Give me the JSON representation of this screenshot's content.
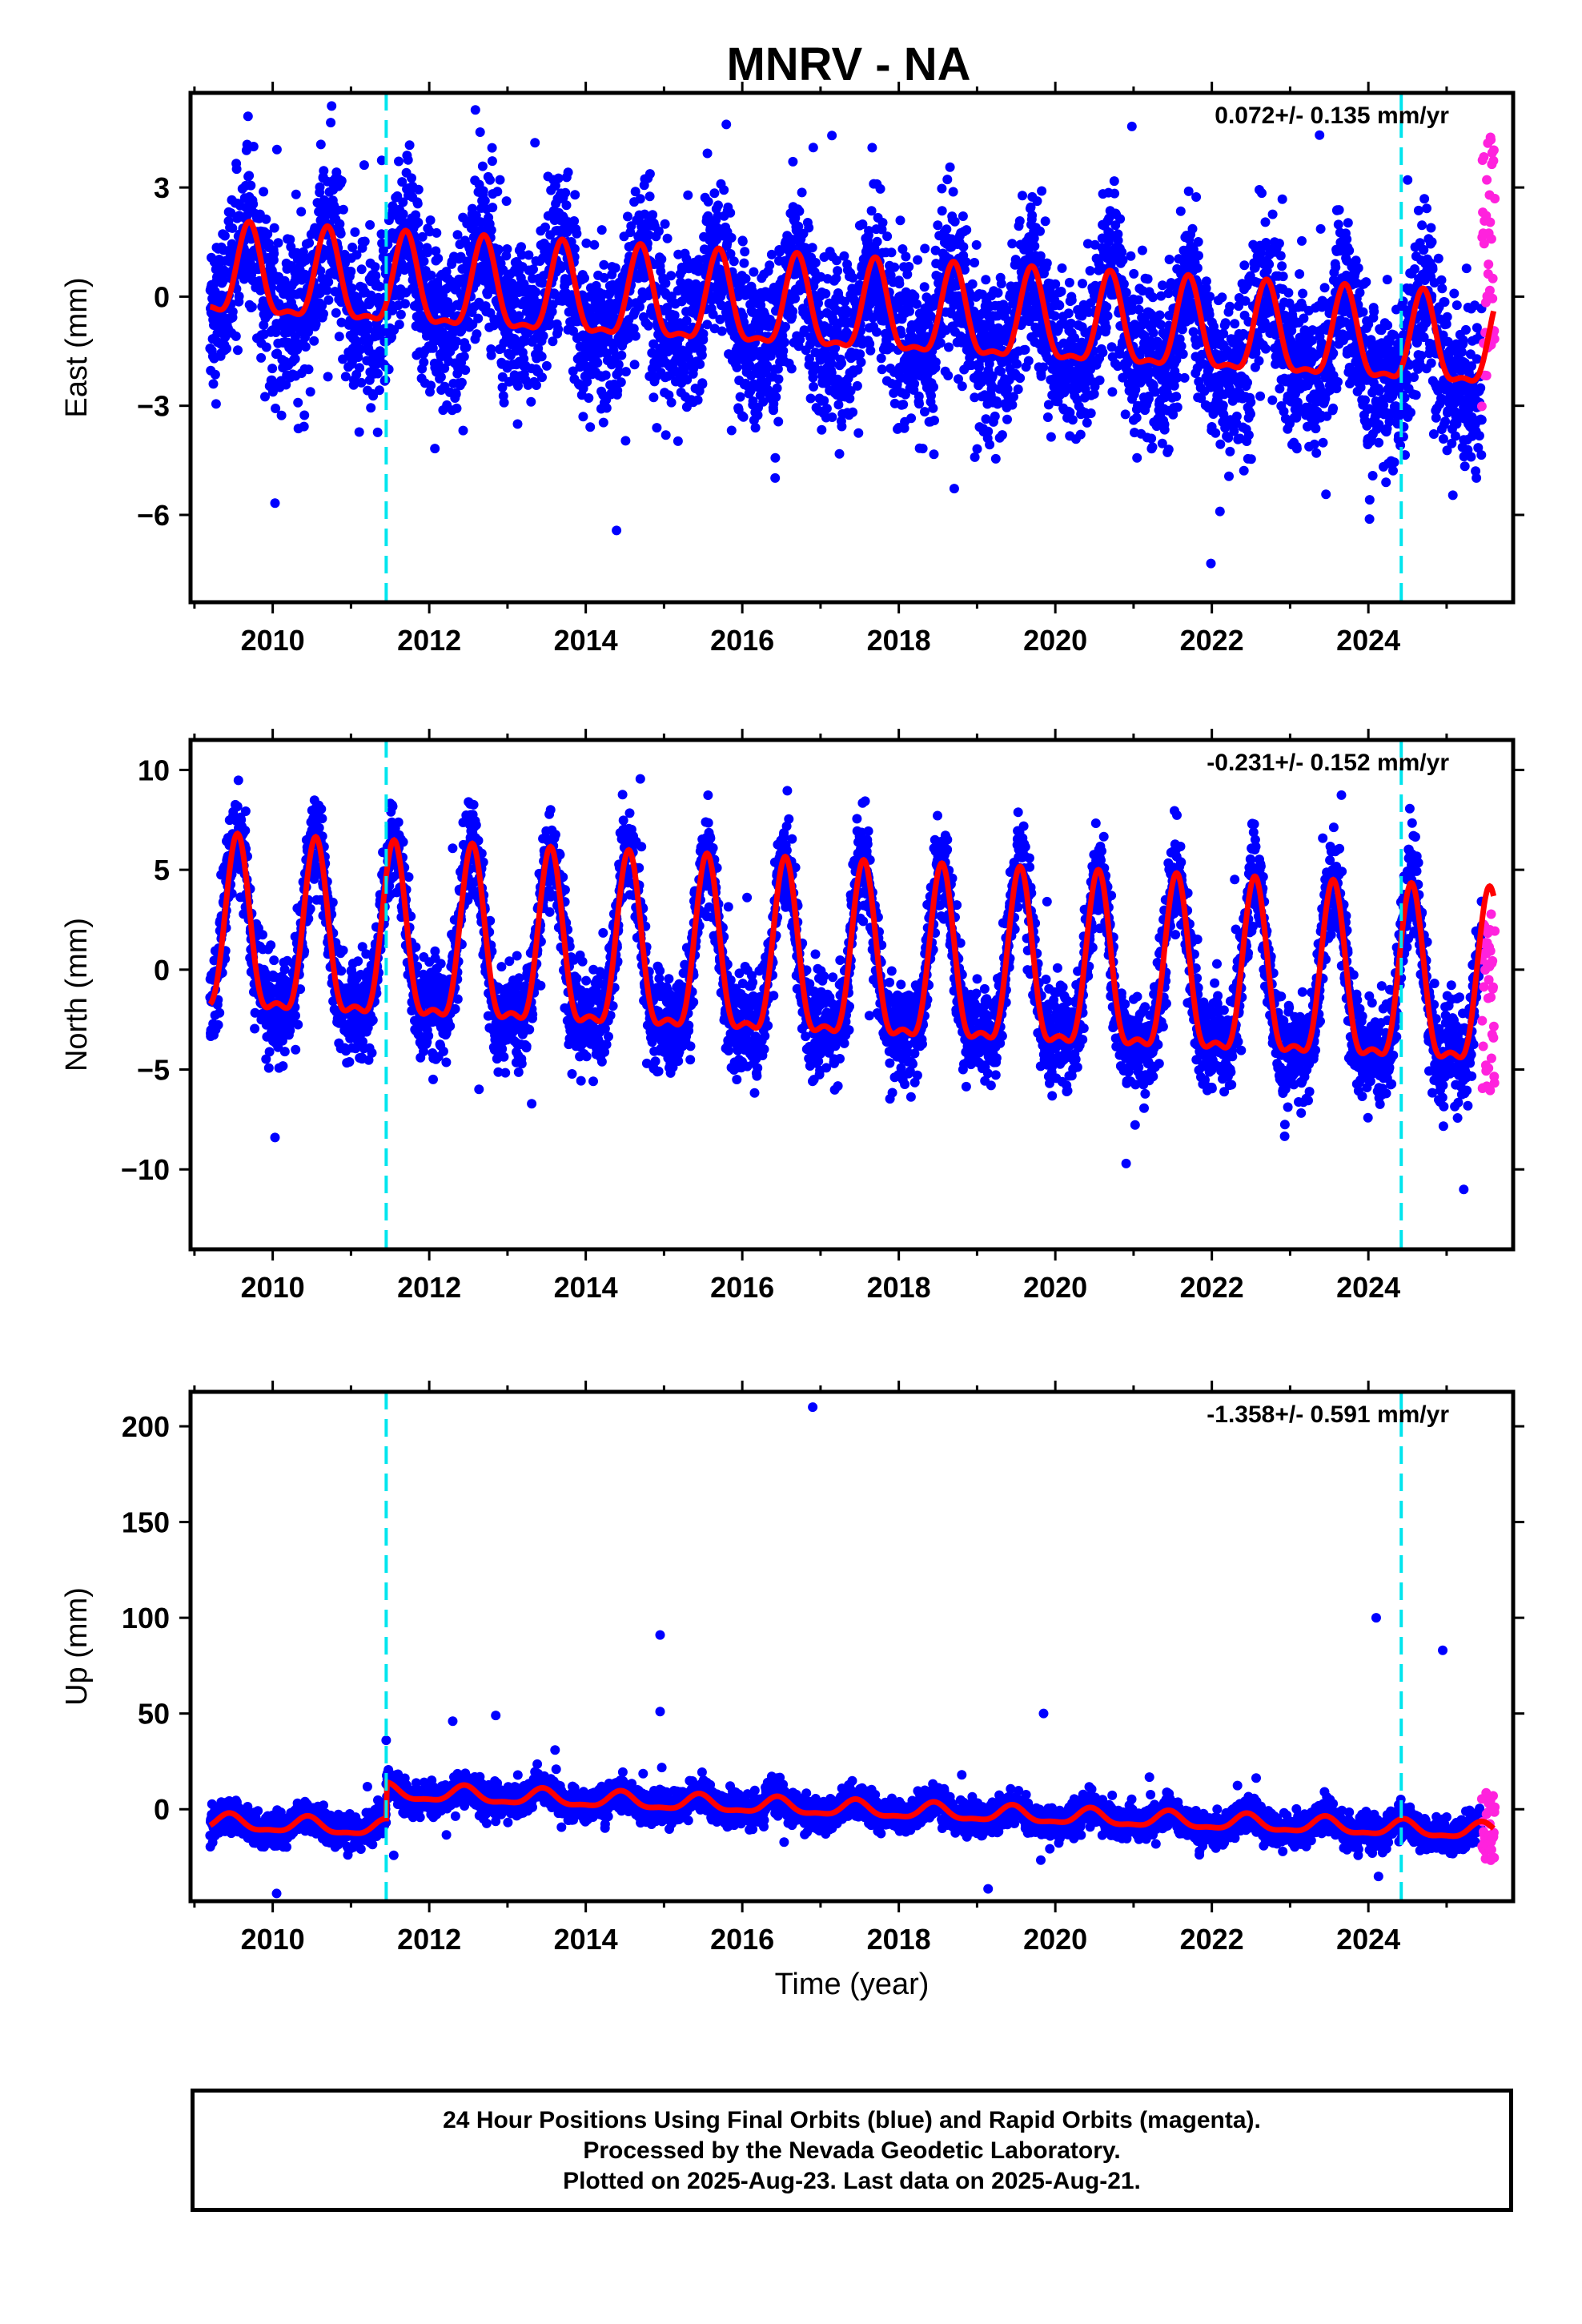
{
  "title": "MNRV - NA",
  "xlabel": "Time (year)",
  "colors": {
    "final": "#0000ff",
    "rapid": "#ff22dd",
    "model": "#ff0000",
    "event": "#00e5ee"
  },
  "chart_data": [
    {
      "type": "scatter",
      "panel": "east",
      "ylabel": "East (mm)",
      "rate": "0.072+/- 0.135 mm/yr",
      "xlim": [
        2008.95,
        2025.85
      ],
      "ylim": [
        -8.4,
        5.6
      ],
      "xticks": [
        2010,
        2012,
        2014,
        2016,
        2018,
        2020,
        2022,
        2024
      ],
      "xtick_labels": [
        "2010",
        "2012",
        "2014",
        "2016",
        "2018",
        "2020",
        "2022",
        "2024"
      ],
      "yticks": [
        3,
        0,
        -3,
        -6
      ],
      "ytick_labels": [
        "3",
        "0",
        "−3",
        "−6"
      ],
      "event_lines": [
        2011.45,
        2024.42
      ],
      "series": [
        {
          "kind": "final",
          "x_range": [
            2009.2,
            2025.45
          ],
          "trend_start": 0.5,
          "trend_end": -1.6,
          "amplitude": 1.2,
          "phase_peak": 0.7,
          "noise": 1.1
        },
        {
          "kind": "rapid",
          "x_range": [
            2025.45,
            2025.62
          ],
          "y_range": [
            -3.6,
            4.7
          ]
        },
        {
          "kind": "model",
          "x_range": [
            2009.2,
            2025.6
          ],
          "trend_start": 0.5,
          "trend_end": -1.5,
          "amplitude": 1.2,
          "phase_peak": 0.7
        }
      ]
    },
    {
      "type": "scatter",
      "panel": "north",
      "ylabel": "North (mm)",
      "rate": "-0.231+/- 0.152 mm/yr",
      "xlim": [
        2008.95,
        2025.85
      ],
      "ylim": [
        -14,
        11.5
      ],
      "xticks": [
        2010,
        2012,
        2014,
        2016,
        2018,
        2020,
        2022,
        2024
      ],
      "xtick_labels": [
        "2010",
        "2012",
        "2014",
        "2016",
        "2018",
        "2020",
        "2022",
        "2024"
      ],
      "yticks": [
        10,
        5,
        0,
        -5,
        -10
      ],
      "ytick_labels": [
        "10",
        "5",
        "0",
        "−5",
        "−10"
      ],
      "event_lines": [
        2011.45,
        2024.42
      ],
      "series": [
        {
          "kind": "final",
          "x_range": [
            2009.2,
            2025.45
          ],
          "trend_start": 1.2,
          "trend_end": -1.5,
          "amplitude": 4.2,
          "phase_peak": 0.55,
          "noise": 1.2
        },
        {
          "kind": "rapid",
          "x_range": [
            2025.45,
            2025.62
          ],
          "y_range": [
            -6.2,
            2.8
          ]
        },
        {
          "kind": "model",
          "x_range": [
            2009.2,
            2025.6
          ],
          "trend_start": 1.2,
          "trend_end": -1.5,
          "amplitude": 4.2,
          "phase_peak": 0.55
        }
      ]
    },
    {
      "type": "scatter",
      "panel": "up",
      "ylabel": "Up (mm)",
      "rate": "-1.358+/- 0.591 mm/yr",
      "xlim": [
        2008.95,
        2025.85
      ],
      "ylim": [
        -48,
        218
      ],
      "xticks": [
        2010,
        2012,
        2014,
        2016,
        2018,
        2020,
        2022,
        2024
      ],
      "xtick_labels": [
        "2010",
        "2012",
        "2014",
        "2016",
        "2018",
        "2020",
        "2022",
        "2024"
      ],
      "yticks": [
        200,
        150,
        100,
        50,
        0
      ],
      "ytick_labels": [
        "200",
        "150",
        "100",
        "50",
        "0"
      ],
      "event_lines": [
        2011.45,
        2024.42
      ],
      "offsets": [
        {
          "x": 2011.45,
          "before": -7,
          "after": 12
        }
      ],
      "series": [
        {
          "kind": "final",
          "x_range": [
            2009.2,
            2025.45
          ],
          "trend_start": 12,
          "trend_end": -12,
          "amplitude": 4,
          "phase_peak": 0.45,
          "noise": 4
        },
        {
          "kind": "rapid",
          "x_range": [
            2025.45,
            2025.62
          ],
          "y_range": [
            -28,
            9
          ]
        },
        {
          "kind": "model",
          "x_range": [
            2009.2,
            2025.6
          ],
          "trend_start": 12,
          "trend_end": -12,
          "amplitude": 4,
          "phase_peak": 0.45
        }
      ],
      "outliers": [
        [
          2016.9,
          210
        ],
        [
          2014.95,
          91
        ],
        [
          2024.1,
          100
        ],
        [
          2024.95,
          83
        ],
        [
          2014.95,
          51
        ],
        [
          2019.85,
          50
        ],
        [
          2012.85,
          49
        ],
        [
          2012.3,
          46
        ],
        [
          2010.05,
          -44
        ],
        [
          2011.45,
          36
        ]
      ]
    }
  ],
  "caption": {
    "line1": "24 Hour Positions Using Final Orbits (blue) and Rapid Orbits (magenta).",
    "line2": "Processed by the Nevada Geodetic Laboratory.",
    "line3": "Plotted on 2025-Aug-23. Last data on 2025-Aug-21."
  }
}
